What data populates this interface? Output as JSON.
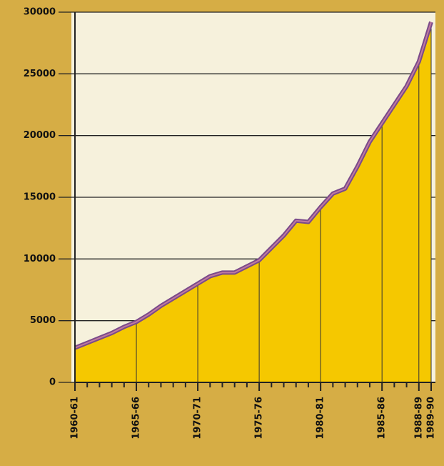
{
  "chart_data": {
    "type": "area",
    "categories": [
      "1960-61",
      null,
      null,
      null,
      null,
      "1965-66",
      null,
      null,
      null,
      null,
      "1970-71",
      null,
      null,
      null,
      null,
      "1975-76",
      null,
      null,
      null,
      null,
      "1980-81",
      null,
      null,
      null,
      null,
      "1985-86",
      null,
      null,
      "1988-89",
      "1989-90"
    ],
    "values": [
      2800,
      3200,
      3600,
      4000,
      4500,
      4900,
      5500,
      6200,
      6800,
      7400,
      8000,
      8600,
      8900,
      8900,
      9400,
      9900,
      10900,
      11900,
      13100,
      13000,
      14200,
      15300,
      15700,
      17500,
      19500,
      21000,
      22500,
      24000,
      26000,
      29200
    ],
    "color": "#f5c800",
    "line_color": "#7a4a8a",
    "ylim": [
      0,
      30000
    ],
    "yticks": [
      0,
      5000,
      10000,
      15000,
      20000,
      25000,
      30000
    ],
    "grid": true
  }
}
